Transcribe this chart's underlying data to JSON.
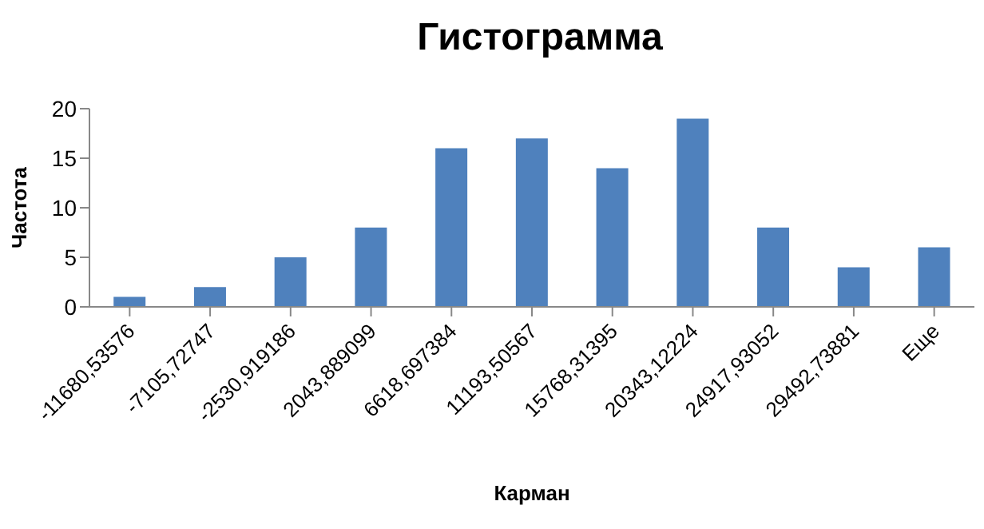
{
  "chart_data": {
    "type": "bar",
    "title": "Гистограмма",
    "xlabel": "Карман",
    "ylabel": "Частота",
    "categories": [
      "-11680,53576",
      "-7105,72747",
      "-2530,919186",
      "2043,889099",
      "6618,697384",
      "11193,50567",
      "15768,31395",
      "20343,12224",
      "24917,93052",
      "29492,73881",
      "Еще"
    ],
    "values": [
      1,
      2,
      5,
      8,
      16,
      17,
      14,
      19,
      8,
      4,
      6
    ],
    "color": "#4f81bd",
    "ylim": [
      0,
      20
    ],
    "yticks": [
      0,
      5,
      10,
      15,
      20
    ],
    "grid": false,
    "legend": false
  }
}
